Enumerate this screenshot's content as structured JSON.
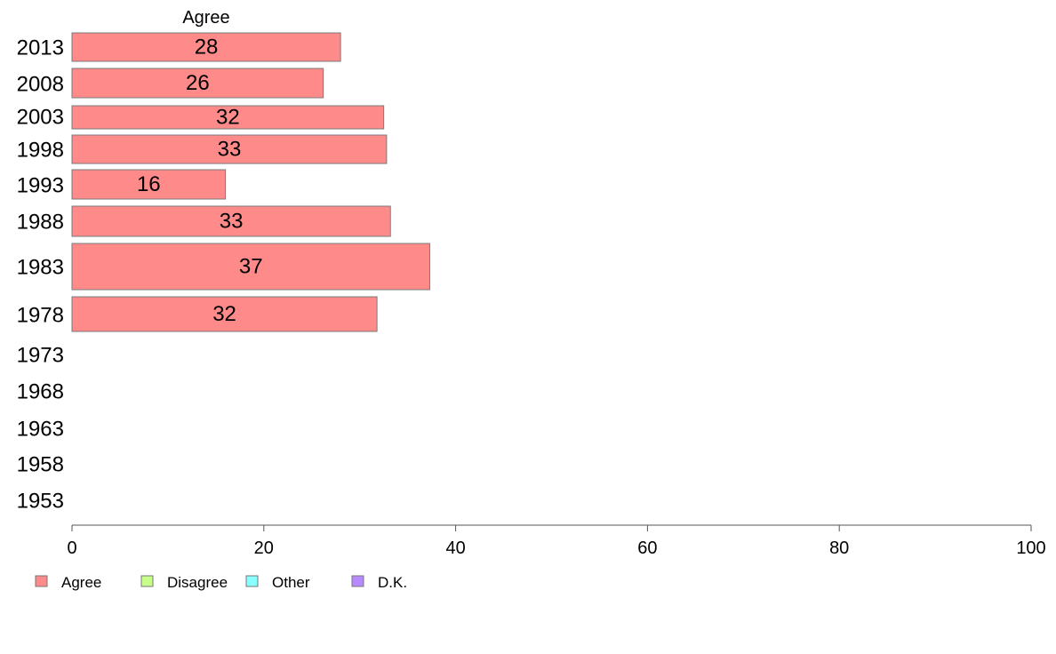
{
  "chart_data": {
    "type": "bar",
    "orientation": "horizontal",
    "stacked": true,
    "header": "Agree",
    "categories": [
      "2013",
      "2008",
      "2003",
      "1998",
      "1993",
      "1988",
      "1983",
      "1978",
      "1973",
      "1968",
      "1963",
      "1958",
      "1953"
    ],
    "series": [
      {
        "name": "Agree",
        "color": "#ff8a8a",
        "values": [
          28,
          26.2,
          32.5,
          32.8,
          16,
          33.2,
          37.3,
          31.8,
          null,
          null,
          null,
          null,
          null
        ],
        "labels": [
          "28",
          "26",
          "32",
          "33",
          "16",
          "33",
          "37",
          "32",
          "",
          "",
          "",
          "",
          ""
        ]
      },
      {
        "name": "Disagree",
        "color": "#c8ff8a",
        "values": [
          null,
          null,
          null,
          null,
          null,
          null,
          null,
          null,
          null,
          null,
          null,
          null,
          null
        ]
      },
      {
        "name": "Other",
        "color": "#8affff",
        "values": [
          null,
          null,
          null,
          null,
          null,
          null,
          null,
          null,
          null,
          null,
          null,
          null,
          null
        ]
      },
      {
        "name": "D.K.",
        "color": "#b78aff",
        "values": [
          null,
          null,
          null,
          null,
          null,
          null,
          null,
          null,
          null,
          null,
          null,
          null,
          null
        ]
      }
    ],
    "xlim": [
      0,
      100
    ],
    "xticks": [
      "0",
      "20",
      "40",
      "60",
      "80",
      "100"
    ],
    "grid": false,
    "legend_position": "bottom-left"
  }
}
